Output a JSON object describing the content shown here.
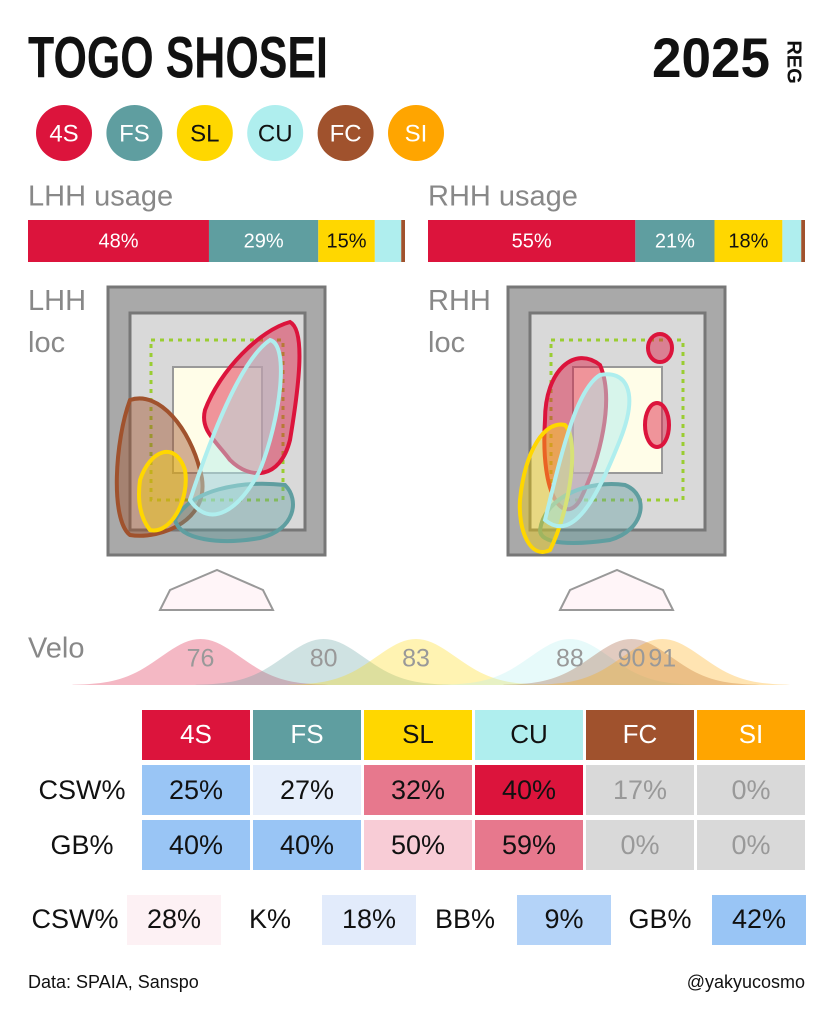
{
  "header": {
    "title": "TOGO SHOSEI",
    "year": "2025",
    "season": "REG"
  },
  "pitches": [
    {
      "name": "4S",
      "color": "#dc143c",
      "text_color": "#ffffff"
    },
    {
      "name": "FS",
      "color": "#5f9ea0",
      "text_color": "#ffffff"
    },
    {
      "name": "SL",
      "color": "#ffd700",
      "text_color": "#111111"
    },
    {
      "name": "CU",
      "color": "#afeeee",
      "text_color": "#111111"
    },
    {
      "name": "FC",
      "color": "#a0522d",
      "text_color": "#ffffff"
    },
    {
      "name": "SI",
      "color": "#ffa500",
      "text_color": "#ffffff"
    }
  ],
  "usage": [
    {
      "title": "LHH usage",
      "values": [
        48,
        29,
        15,
        7,
        1,
        0
      ],
      "value_labels": [
        "48%",
        "29%",
        "15%",
        null,
        null,
        null
      ],
      "xlim": [
        0,
        100
      ]
    },
    {
      "title": "RHH usage",
      "values": [
        55,
        21,
        18,
        5,
        1,
        0
      ],
      "value_labels": [
        "55%",
        "21%",
        "18%",
        null,
        null,
        null
      ],
      "xlim": [
        0,
        100
      ]
    }
  ],
  "locations": [
    {
      "title": "LHH loc"
    },
    {
      "title": "RHH loc"
    }
  ],
  "velo": {
    "title": "Velo",
    "values": [
      76,
      80,
      83,
      88,
      90,
      91
    ],
    "xlim": [
      71.5,
      94.5
    ]
  },
  "table": {
    "rows": [
      {
        "label": "CSW%",
        "cells": [
          {
            "text": "25%",
            "fill": "#99c5f5",
            "color": "#111111"
          },
          {
            "text": "27%",
            "fill": "#e6eefb",
            "color": "#111111"
          },
          {
            "text": "32%",
            "fill": "#e7788d",
            "color": "#111111"
          },
          {
            "text": "40%",
            "fill": "#dc143c",
            "color": "#111111"
          },
          {
            "text": "17%",
            "fill": "#d9d9d9",
            "color": "#999999"
          },
          {
            "text": "0%",
            "fill": "#d9d9d9",
            "color": "#999999"
          }
        ]
      },
      {
        "label": "GB%",
        "cells": [
          {
            "text": "40%",
            "fill": "#99c5f5",
            "color": "#111111"
          },
          {
            "text": "40%",
            "fill": "#99c5f5",
            "color": "#111111"
          },
          {
            "text": "50%",
            "fill": "#f8ccd6",
            "color": "#111111"
          },
          {
            "text": "59%",
            "fill": "#e7788d",
            "color": "#111111"
          },
          {
            "text": "0%",
            "fill": "#d9d9d9",
            "color": "#999999"
          },
          {
            "text": "0%",
            "fill": "#d9d9d9",
            "color": "#999999"
          }
        ]
      }
    ]
  },
  "summary": [
    {
      "label": "CSW%",
      "value": "28%",
      "fill": "#fdf1f4"
    },
    {
      "label": "K%",
      "value": "18%",
      "fill": "#e2ebfb"
    },
    {
      "label": "BB%",
      "value": "9%",
      "fill": "#b4d3f8"
    },
    {
      "label": "GB%",
      "value": "42%",
      "fill": "#99c5f5"
    }
  ],
  "footer": {
    "source": "Data: SPAIA, Sanspo",
    "credit": "@yakyucosmo"
  }
}
